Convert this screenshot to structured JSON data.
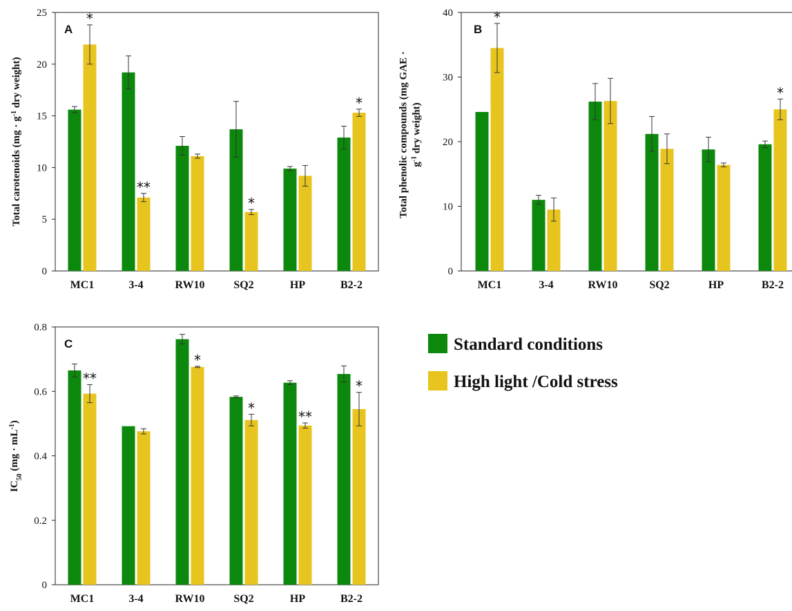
{
  "colors": {
    "standard": "#0c880c",
    "stress": "#e8c41e",
    "axis": "#222222",
    "error": "#333333"
  },
  "legend": {
    "items": [
      {
        "label": "Standard conditions",
        "color": "#0c880c"
      },
      {
        "label": "High light /Cold stress",
        "color": "#e8c41e"
      }
    ]
  },
  "chart_data": [
    {
      "panel": "A",
      "type": "bar",
      "ylabel_lines": [
        [
          "Total carotenoids (mg · g",
          "-1",
          " dry weight)"
        ]
      ],
      "ylim": [
        0,
        25
      ],
      "yticks": [
        0,
        5,
        10,
        15,
        20,
        25
      ],
      "categories": [
        "MC1",
        "3-4",
        "RW10",
        "SQ2",
        "HP",
        "B2-2"
      ],
      "series": [
        {
          "name": "Standard conditions",
          "values": [
            15.6,
            19.2,
            12.1,
            13.7,
            9.9,
            12.9
          ],
          "errors": [
            0.3,
            1.6,
            0.9,
            2.7,
            0.2,
            1.1
          ]
        },
        {
          "name": "High light /Cold stress",
          "values": [
            21.9,
            7.1,
            11.1,
            5.7,
            9.2,
            15.3
          ],
          "errors": [
            1.9,
            0.4,
            0.2,
            0.25,
            1.0,
            0.35
          ]
        }
      ],
      "annotations": [
        "*",
        "**",
        "",
        "*",
        "",
        "*"
      ]
    },
    {
      "panel": "B",
      "type": "bar",
      "ylabel_lines": [
        [
          "Total phenolic compounds (mg GAE ·"
        ],
        [
          "g",
          "-1",
          " dry weight)"
        ]
      ],
      "ylim": [
        0,
        40
      ],
      "yticks": [
        0,
        10,
        20,
        30,
        40
      ],
      "categories": [
        "MC1",
        "3-4",
        "RW10",
        "SQ2",
        "HP",
        "B2-2"
      ],
      "series": [
        {
          "name": "Standard conditions",
          "values": [
            24.6,
            11.0,
            26.2,
            21.2,
            18.8,
            19.6
          ],
          "errors": [
            0,
            0.7,
            2.8,
            2.7,
            1.9,
            0.5
          ]
        },
        {
          "name": "High light /Cold stress",
          "values": [
            34.5,
            9.5,
            26.3,
            18.9,
            16.4,
            25.0
          ],
          "errors": [
            3.8,
            1.8,
            3.5,
            2.3,
            0.3,
            1.6
          ]
        }
      ],
      "annotations": [
        "*",
        "",
        "",
        "",
        "",
        "*"
      ]
    },
    {
      "panel": "C",
      "type": "bar",
      "ylabel_lines": [
        [
          "IC",
          "50",
          " (mg · mL",
          "-1",
          ")"
        ]
      ],
      "ylim": [
        0,
        0.8
      ],
      "yticks": [
        0,
        0.2,
        0.4,
        0.6,
        0.8
      ],
      "categories": [
        "MC1",
        "3-4",
        "RW10",
        "SQ2",
        "HP",
        "B2-2"
      ],
      "series": [
        {
          "name": "Standard conditions",
          "values": [
            0.665,
            0.492,
            0.762,
            0.583,
            0.627,
            0.654
          ],
          "errors": [
            0.02,
            0,
            0.015,
            0.003,
            0.006,
            0.025
          ]
        },
        {
          "name": "High light /Cold stress",
          "values": [
            0.593,
            0.476,
            0.676,
            0.511,
            0.494,
            0.545
          ],
          "errors": [
            0.028,
            0.008,
            0.002,
            0.018,
            0.008,
            0.052
          ]
        }
      ],
      "annotations": [
        "**",
        "",
        "*",
        "*",
        "**",
        "*"
      ]
    }
  ]
}
